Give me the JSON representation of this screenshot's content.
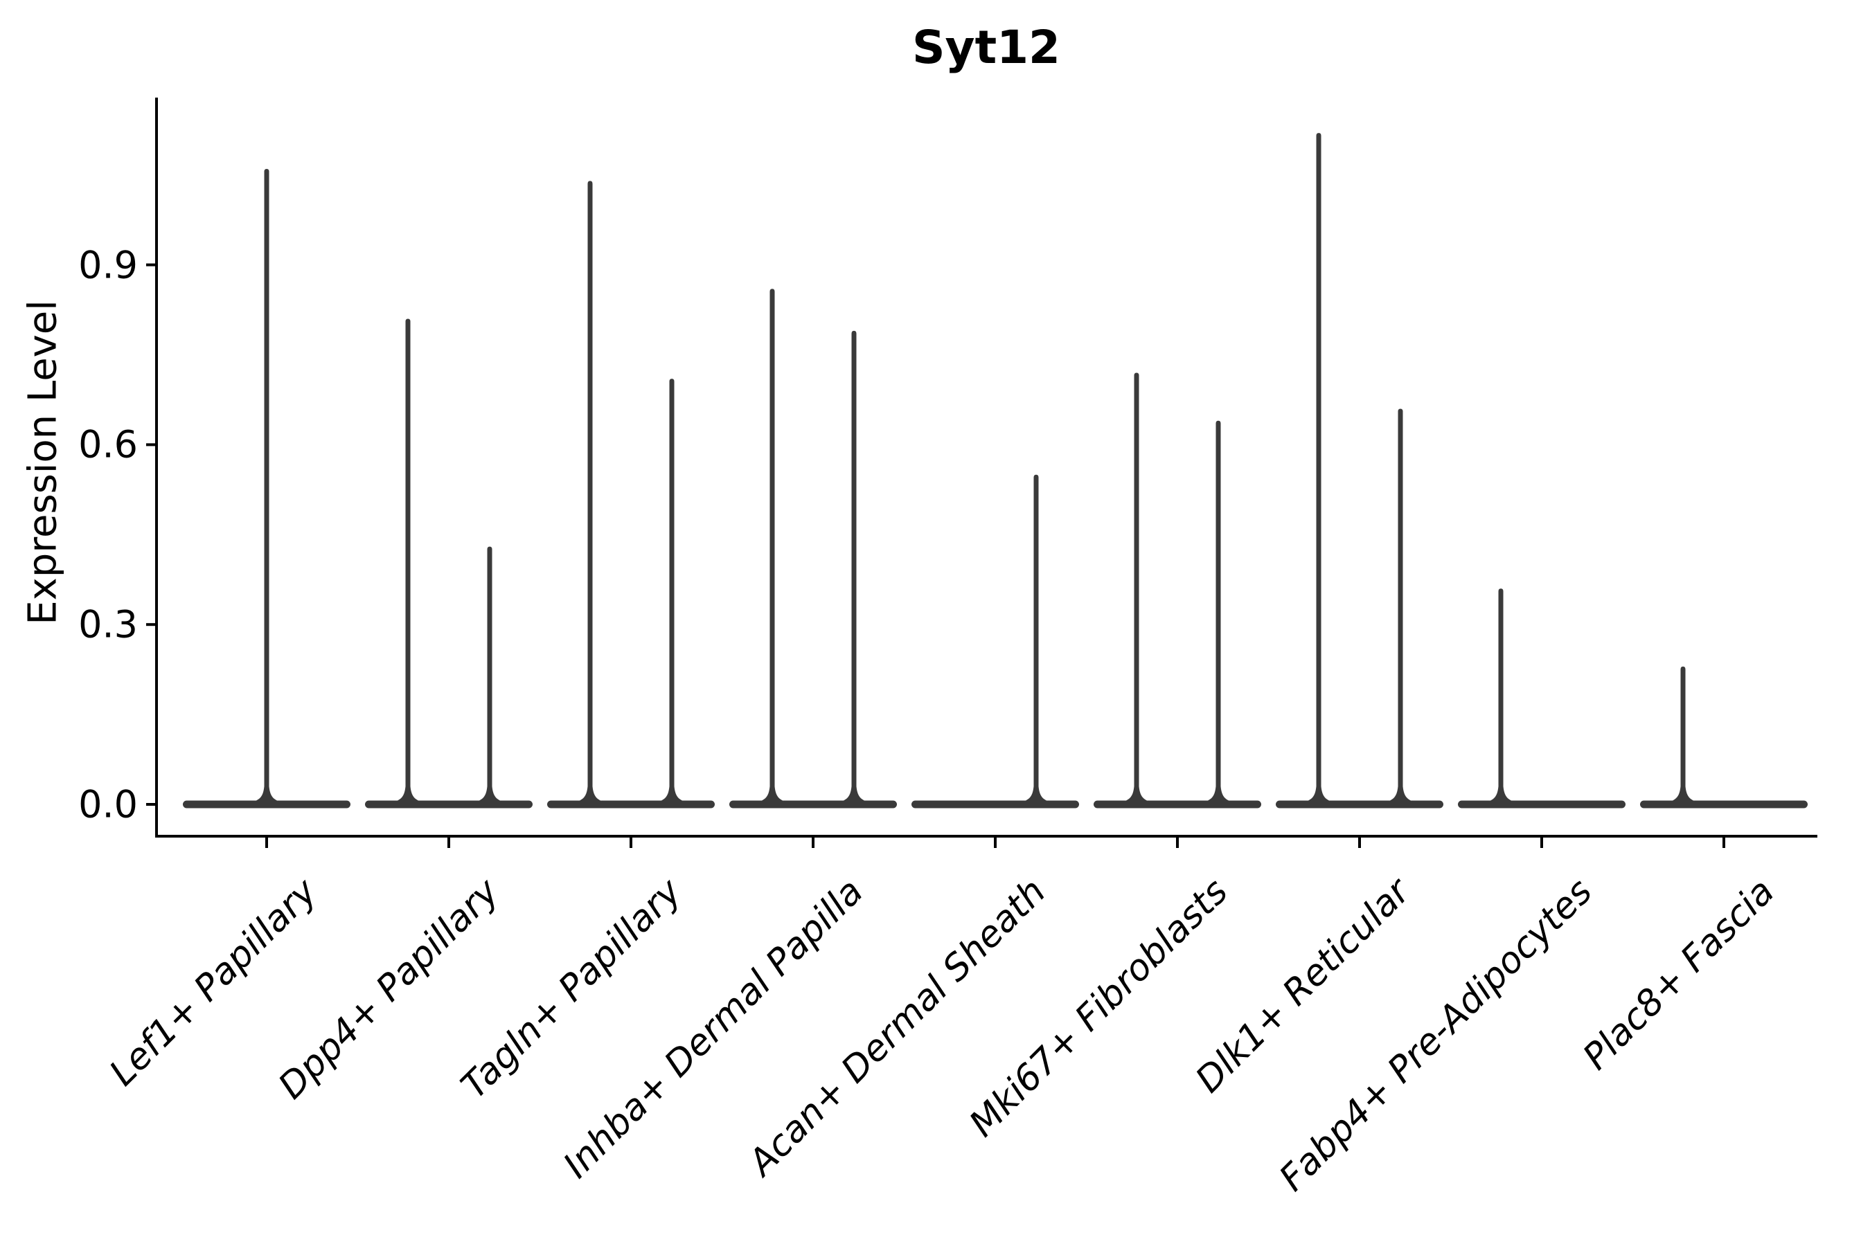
{
  "figure": {
    "title": "Syt12"
  },
  "axes": {
    "ylabel": "Expression Level",
    "ytick_labels": [
      "0.0",
      "0.3",
      "0.6",
      "0.9"
    ]
  },
  "chart_data": {
    "type": "violin",
    "title": "Syt12",
    "xlabel": "",
    "ylabel": "Expression Level",
    "yticks": [
      0.0,
      0.3,
      0.6,
      0.9
    ],
    "ylim": [
      0,
      1.18
    ],
    "grid": false,
    "legend": "none",
    "orientation": "vertical",
    "categories": [
      "Lef1+ Papillary",
      "Dpp4+ Papillary",
      "Tagln+ Papillary",
      "Inhba+ Dermal Papilla",
      "Acan+ Dermal Sheath",
      "Mki67+ Fibroblasts",
      "Dlk1+ Reticular",
      "Fabp4+ Pre-Adipocytes",
      "Plac8+ Fascia"
    ],
    "violins": [
      {
        "category": "Lef1+ Papillary",
        "spikes": [
          {
            "position": "center",
            "max_expression": 1.06
          }
        ]
      },
      {
        "category": "Dpp4+ Papillary",
        "spikes": [
          {
            "position": "left",
            "max_expression": 0.81
          },
          {
            "position": "right",
            "max_expression": 0.43
          }
        ]
      },
      {
        "category": "Tagln+ Papillary",
        "spikes": [
          {
            "position": "left",
            "max_expression": 1.04
          },
          {
            "position": "right",
            "max_expression": 0.71
          }
        ]
      },
      {
        "category": "Inhba+ Dermal Papilla",
        "spikes": [
          {
            "position": "left",
            "max_expression": 0.86
          },
          {
            "position": "right",
            "max_expression": 0.79
          }
        ]
      },
      {
        "category": "Acan+ Dermal Sheath",
        "spikes": [
          {
            "position": "right",
            "max_expression": 0.55
          }
        ]
      },
      {
        "category": "Mki67+ Fibroblasts",
        "spikes": [
          {
            "position": "left",
            "max_expression": 0.72
          },
          {
            "position": "right",
            "max_expression": 0.64
          }
        ]
      },
      {
        "category": "Dlk1+ Reticular",
        "spikes": [
          {
            "position": "left",
            "max_expression": 1.12
          },
          {
            "position": "right",
            "max_expression": 0.66
          }
        ]
      },
      {
        "category": "Fabp4+ Pre-Adipocytes",
        "spikes": [
          {
            "position": "left",
            "max_expression": 0.36
          }
        ]
      },
      {
        "category": "Plac8+ Fascia",
        "spikes": [
          {
            "position": "left",
            "max_expression": 0.23
          }
        ]
      }
    ]
  },
  "colors": {
    "ink": "#000000",
    "violin_fill": "#3a3a3a"
  }
}
